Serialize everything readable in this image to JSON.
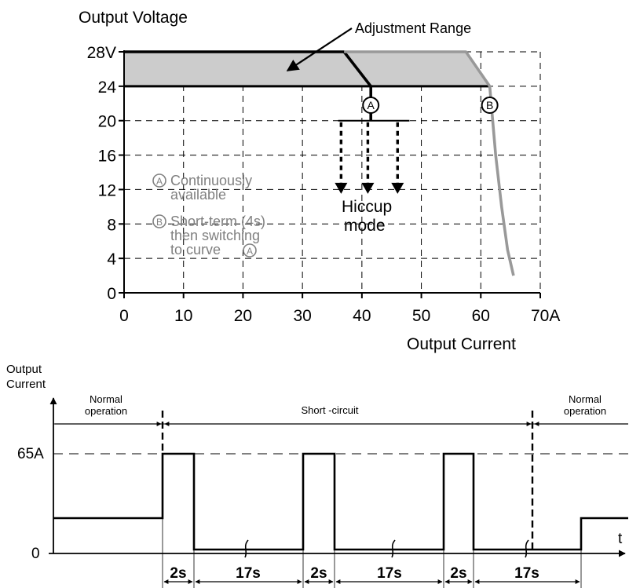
{
  "chart_data": [
    {
      "type": "line",
      "title": "",
      "ylabel": "Output Voltage",
      "xlabel": "Output Current",
      "xlim": [
        0,
        70
      ],
      "ylim": [
        0,
        28
      ],
      "x_ticks": [
        "0",
        "10",
        "20",
        "30",
        "40",
        "50",
        "60",
        "70A"
      ],
      "y_ticks": [
        "0",
        "4",
        "8",
        "12",
        "16",
        "20",
        "24",
        "28V"
      ],
      "grid": true,
      "colors": {
        "curve_a": "#000000",
        "curve_b": "#999999",
        "adjustment_fill": "#cccccc",
        "annotation_text": "#808080"
      },
      "series": [
        {
          "name": "A",
          "points": [
            [
              0,
              28
            ],
            [
              37,
              28
            ],
            [
              41.5,
              24
            ],
            [
              41.5,
              20
            ]
          ]
        },
        {
          "name": "B",
          "points": [
            [
              37,
              28
            ],
            [
              57.5,
              28
            ],
            [
              61.5,
              24
            ],
            [
              62.5,
              16
            ],
            [
              63.5,
              10
            ],
            [
              64.5,
              5
            ],
            [
              65.5,
              2
            ]
          ]
        }
      ],
      "adjustment_range": {
        "label": "Adjustment Range",
        "upper": [
          [
            0,
            28
          ],
          [
            57.5,
            28
          ],
          [
            61.5,
            24
          ]
        ],
        "lower": [
          [
            0,
            24
          ],
          [
            61.5,
            24
          ]
        ]
      },
      "hiccup": {
        "label_line1": "Hiccup",
        "label_line2": "mode",
        "bar_x": [
          36,
          48
        ],
        "bar_y": 20,
        "arrows_x": [
          36.5,
          41,
          46
        ],
        "arrow_tip_y": 11.5
      },
      "markers": [
        {
          "label": "A",
          "x": 41.5,
          "y": 21.8
        },
        {
          "label": "B",
          "x": 61.5,
          "y": 21.8
        }
      ],
      "legend": [
        {
          "marker": "A",
          "lines": [
            "Continuously",
            "available"
          ]
        },
        {
          "marker": "B",
          "lines": [
            "Short-term (4s)",
            "then switching",
            "to curve"
          ],
          "trailing_marker": "A"
        }
      ]
    },
    {
      "type": "line",
      "title": "",
      "ylabel_lines": [
        "Output",
        "Current"
      ],
      "xlabel": "t",
      "y_ticks": [
        "0",
        "65A"
      ],
      "y_levels": {
        "zero": 0,
        "peak": 65,
        "normal": 22
      },
      "phases": [
        {
          "lines": [
            "Normal",
            "operation"
          ],
          "start": 0,
          "end": 5
        },
        {
          "lines": [
            "Short -circuit"
          ],
          "start": 5,
          "end": 44
        },
        {
          "lines": [
            "Normal",
            "operation"
          ],
          "start": 44,
          "end": 47.5
        }
      ],
      "waveform": [
        [
          0,
          22
        ],
        [
          5,
          22
        ],
        [
          5,
          65
        ],
        [
          7,
          65
        ],
        [
          7,
          0
        ],
        [
          24,
          0
        ],
        [
          24,
          65
        ],
        [
          26,
          65
        ],
        [
          26,
          0
        ],
        [
          43,
          0
        ],
        [
          43,
          65
        ],
        [
          45,
          65
        ],
        [
          45,
          0
        ],
        [
          62,
          0
        ]
      ],
      "waveform_note": "time axis in seconds from start of plot",
      "intervals": [
        {
          "label": "2s",
          "start": 5,
          "end": 7
        },
        {
          "label": "17s",
          "start": 7,
          "end": 24
        },
        {
          "label": "2s",
          "start": 24,
          "end": 26
        },
        {
          "label": "17s",
          "start": 26,
          "end": 43
        },
        {
          "label": "2s",
          "start": 43,
          "end": 45
        },
        {
          "label": "17s",
          "start": 45,
          "end": 62
        }
      ]
    }
  ]
}
